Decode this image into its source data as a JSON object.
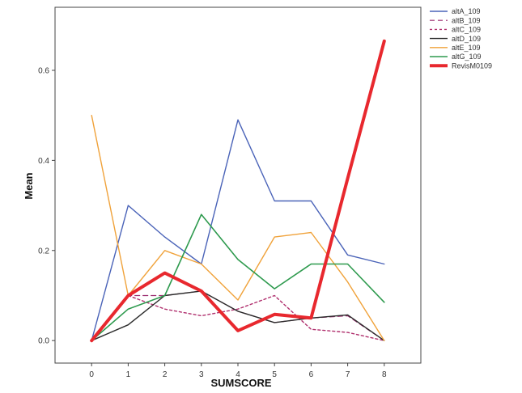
{
  "chart_data": {
    "type": "line",
    "xlabel": "SUMSCORE",
    "ylabel": "Mean",
    "x": [
      0,
      1,
      2,
      3,
      4,
      5,
      6,
      7,
      8
    ],
    "xlim": [
      -1,
      9
    ],
    "ylim": [
      -0.05,
      0.74
    ],
    "yticks": [
      0.0,
      0.2,
      0.4,
      0.6
    ],
    "ytick_labels": [
      "0.0",
      "0.2",
      "0.4",
      "0.6"
    ],
    "legend_position": "right",
    "series": [
      {
        "name": "altA_109",
        "color": "#4a63b8",
        "dash": "",
        "width": 1.4,
        "values": [
          0.0,
          0.3,
          0.23,
          0.17,
          0.49,
          0.31,
          0.31,
          0.19,
          0.17
        ]
      },
      {
        "name": "altB_109",
        "color": "#9a2a6e",
        "dash": "6 4",
        "width": 1.2,
        "values": [
          0.0,
          0.1,
          0.1,
          0.11,
          0.065,
          0.04,
          0.05,
          0.055,
          0.0
        ]
      },
      {
        "name": "altC_109",
        "color": "#b0306e",
        "dash": "3 3",
        "width": 1.4,
        "values": [
          0.0,
          0.1,
          0.07,
          0.055,
          0.07,
          0.1,
          0.025,
          0.018,
          0.0
        ]
      },
      {
        "name": "altD_109",
        "color": "#2a2a2a",
        "dash": "",
        "width": 1.4,
        "values": [
          0.0,
          0.035,
          0.1,
          0.11,
          0.065,
          0.04,
          0.05,
          0.057,
          0.0
        ]
      },
      {
        "name": "altE_109",
        "color": "#f0a23a",
        "dash": "",
        "width": 1.4,
        "values": [
          0.5,
          0.1,
          0.2,
          0.17,
          0.09,
          0.23,
          0.24,
          0.13,
          0.0
        ]
      },
      {
        "name": "altG_109",
        "color": "#2e9a4e",
        "dash": "",
        "width": 1.6,
        "values": [
          0.0,
          0.07,
          0.1,
          0.28,
          0.18,
          0.115,
          0.17,
          0.17,
          0.085
        ]
      },
      {
        "name": "RevisM0109",
        "color": "#e8282e",
        "dash": "",
        "width": 4,
        "values": [
          0.0,
          0.1,
          0.15,
          0.11,
          0.022,
          0.058,
          0.05,
          0.36,
          0.665
        ]
      }
    ]
  }
}
